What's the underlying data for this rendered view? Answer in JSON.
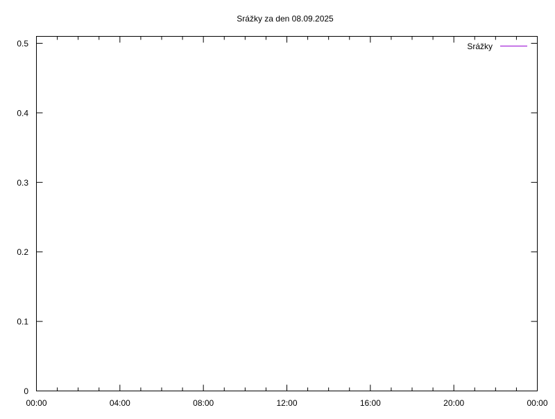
{
  "chart_data": {
    "type": "line",
    "title": "Srážky za den 08.09.2025",
    "xlabel": "",
    "ylabel": "",
    "x_ticks": [
      "00:00",
      "04:00",
      "08:00",
      "12:00",
      "16:00",
      "20:00",
      "00:00"
    ],
    "x_range_hours": [
      0,
      24
    ],
    "x_minor_tick_interval_hours": 1,
    "y_ticks": [
      "0",
      "0.1",
      "0.2",
      "0.3",
      "0.4",
      "0.5"
    ],
    "ylim": [
      0,
      0.51
    ],
    "grid": false,
    "legend_position": "top-right",
    "series": [
      {
        "name": "Srážky",
        "color": "#9400d3",
        "x": [],
        "y": []
      }
    ]
  }
}
